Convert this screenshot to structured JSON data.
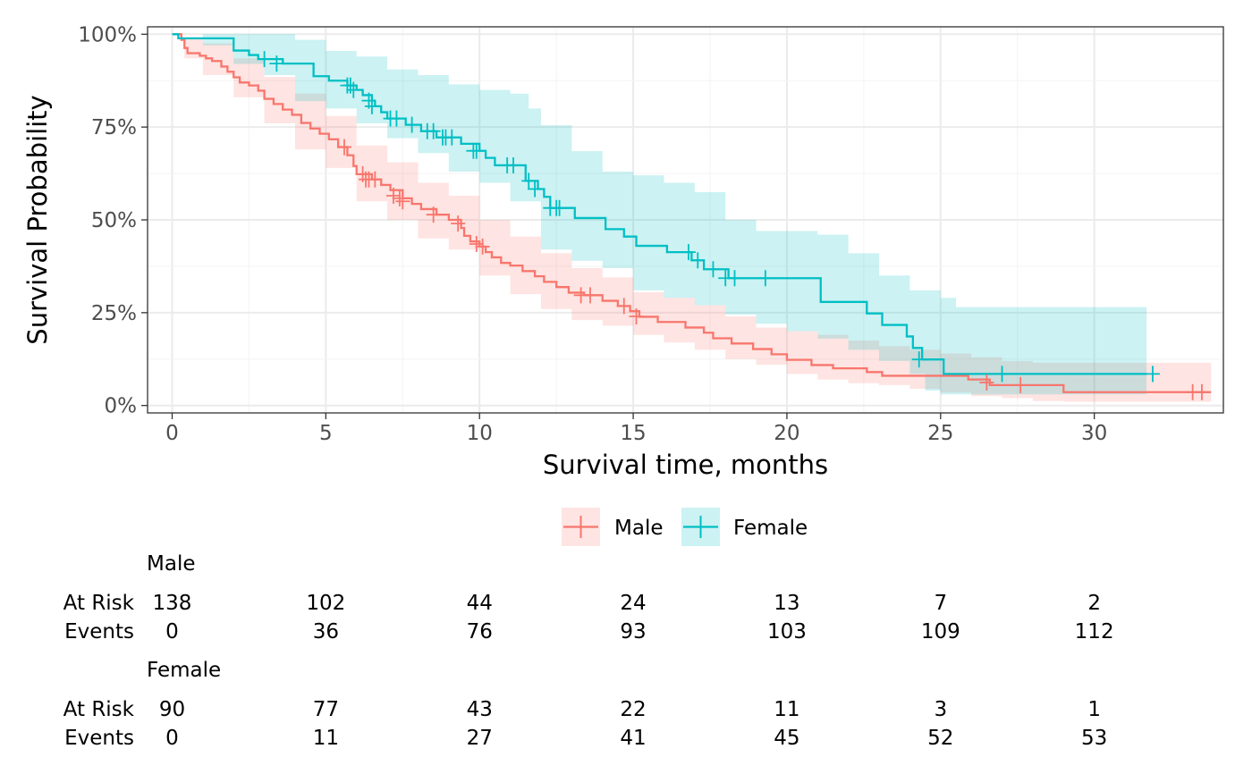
{
  "chart_data": {
    "type": "line",
    "subtype": "kaplan-meier",
    "xlabel": "Survival time, months",
    "ylabel": "Survival Probability",
    "xlim": [
      -0.8,
      34.2
    ],
    "ylim": [
      -0.02,
      1.02
    ],
    "x_ticks": [
      0,
      5,
      10,
      15,
      20,
      25,
      30
    ],
    "x_tick_labels": [
      "0",
      "5",
      "10",
      "15",
      "20",
      "25",
      "30"
    ],
    "y_ticks": [
      0,
      0.25,
      0.5,
      0.75,
      1.0
    ],
    "y_tick_labels": [
      "0%",
      "25%",
      "50%",
      "75%",
      "100%"
    ],
    "grid": true,
    "legend_position": "bottom",
    "series": [
      {
        "name": "Male",
        "color": "#F8766D",
        "fill": "#FBC4C0",
        "steps": [
          [
            0,
            1.0
          ],
          [
            0.3,
            0.985
          ],
          [
            0.4,
            0.963
          ],
          [
            0.5,
            0.949
          ],
          [
            0.9,
            0.942
          ],
          [
            1.1,
            0.935
          ],
          [
            1.3,
            0.928
          ],
          [
            1.6,
            0.913
          ],
          [
            1.8,
            0.899
          ],
          [
            2.0,
            0.884
          ],
          [
            2.2,
            0.87
          ],
          [
            2.5,
            0.862
          ],
          [
            2.8,
            0.848
          ],
          [
            3.0,
            0.826
          ],
          [
            3.3,
            0.812
          ],
          [
            3.6,
            0.797
          ],
          [
            3.9,
            0.783
          ],
          [
            4.2,
            0.761
          ],
          [
            4.5,
            0.746
          ],
          [
            4.8,
            0.732
          ],
          [
            5.1,
            0.717
          ],
          [
            5.4,
            0.696
          ],
          [
            5.7,
            0.674
          ],
          [
            5.9,
            0.645
          ],
          [
            6.0,
            0.623
          ],
          [
            6.5,
            0.609
          ],
          [
            6.8,
            0.594
          ],
          [
            7.1,
            0.58
          ],
          [
            7.5,
            0.558
          ],
          [
            7.8,
            0.543
          ],
          [
            8.1,
            0.529
          ],
          [
            8.6,
            0.514
          ],
          [
            9.0,
            0.5
          ],
          [
            9.4,
            0.478
          ],
          [
            9.5,
            0.457
          ],
          [
            9.7,
            0.442
          ],
          [
            10.0,
            0.428
          ],
          [
            10.2,
            0.413
          ],
          [
            10.4,
            0.399
          ],
          [
            10.7,
            0.384
          ],
          [
            11.0,
            0.377
          ],
          [
            11.4,
            0.362
          ],
          [
            11.8,
            0.348
          ],
          [
            12.1,
            0.333
          ],
          [
            12.5,
            0.319
          ],
          [
            12.9,
            0.304
          ],
          [
            13.4,
            0.297
          ],
          [
            14.0,
            0.282
          ],
          [
            14.5,
            0.268
          ],
          [
            14.9,
            0.254
          ],
          [
            15.2,
            0.239
          ],
          [
            15.8,
            0.225
          ],
          [
            16.7,
            0.21
          ],
          [
            17.3,
            0.196
          ],
          [
            17.6,
            0.181
          ],
          [
            18.2,
            0.167
          ],
          [
            18.9,
            0.152
          ],
          [
            19.5,
            0.138
          ],
          [
            20.0,
            0.123
          ],
          [
            20.8,
            0.109
          ],
          [
            21.5,
            0.1
          ],
          [
            22.6,
            0.09
          ],
          [
            23.1,
            0.08
          ],
          [
            25.9,
            0.07
          ],
          [
            26.6,
            0.055
          ],
          [
            29.0,
            0.036
          ],
          [
            33.8,
            0.036
          ]
        ],
        "upper": [
          [
            0,
            1.0
          ],
          [
            0.4,
            0.99
          ],
          [
            1.0,
            0.975
          ],
          [
            2.0,
            0.935
          ],
          [
            3.0,
            0.885
          ],
          [
            4.0,
            0.84
          ],
          [
            5.0,
            0.78
          ],
          [
            6.0,
            0.7
          ],
          [
            7.0,
            0.655
          ],
          [
            8.0,
            0.6
          ],
          [
            9.0,
            0.565
          ],
          [
            10.0,
            0.5
          ],
          [
            11.0,
            0.455
          ],
          [
            12.0,
            0.41
          ],
          [
            13.0,
            0.37
          ],
          [
            14.0,
            0.345
          ],
          [
            15.0,
            0.305
          ],
          [
            16.0,
            0.29
          ],
          [
            17.0,
            0.27
          ],
          [
            18.0,
            0.24
          ],
          [
            19.0,
            0.21
          ],
          [
            20.0,
            0.2
          ],
          [
            21.0,
            0.19
          ],
          [
            22.0,
            0.175
          ],
          [
            23.0,
            0.16
          ],
          [
            24.0,
            0.15
          ],
          [
            25.0,
            0.14
          ],
          [
            26.0,
            0.13
          ],
          [
            27.0,
            0.12
          ],
          [
            28.0,
            0.115
          ],
          [
            29.0,
            0.115
          ],
          [
            33.8,
            0.115
          ]
        ],
        "lower": [
          [
            0,
            1.0
          ],
          [
            0.4,
            0.935
          ],
          [
            1.0,
            0.89
          ],
          [
            2.0,
            0.83
          ],
          [
            3.0,
            0.76
          ],
          [
            4.0,
            0.69
          ],
          [
            5.0,
            0.64
          ],
          [
            6.0,
            0.55
          ],
          [
            7.0,
            0.5
          ],
          [
            8.0,
            0.45
          ],
          [
            9.0,
            0.42
          ],
          [
            10.0,
            0.35
          ],
          [
            11.0,
            0.3
          ],
          [
            12.0,
            0.26
          ],
          [
            13.0,
            0.23
          ],
          [
            14.0,
            0.215
          ],
          [
            15.0,
            0.19
          ],
          [
            16.0,
            0.17
          ],
          [
            17.0,
            0.15
          ],
          [
            18.0,
            0.125
          ],
          [
            19.0,
            0.11
          ],
          [
            20.0,
            0.085
          ],
          [
            21.0,
            0.07
          ],
          [
            22.0,
            0.06
          ],
          [
            23.0,
            0.055
          ],
          [
            24.0,
            0.045
          ],
          [
            25.0,
            0.035
          ],
          [
            26.0,
            0.025
          ],
          [
            27.0,
            0.02
          ],
          [
            28.0,
            0.012
          ],
          [
            29.0,
            0.01
          ],
          [
            33.8,
            0.01
          ]
        ],
        "censored": [
          [
            5.6,
            0.696
          ],
          [
            6.2,
            0.623
          ],
          [
            6.3,
            0.609
          ],
          [
            6.4,
            0.609
          ],
          [
            6.6,
            0.609
          ],
          [
            7.2,
            0.565
          ],
          [
            7.4,
            0.558
          ],
          [
            7.5,
            0.55
          ],
          [
            8.5,
            0.514
          ],
          [
            9.3,
            0.49
          ],
          [
            9.9,
            0.435
          ],
          [
            10.1,
            0.428
          ],
          [
            13.3,
            0.297
          ],
          [
            13.6,
            0.297
          ],
          [
            14.7,
            0.268
          ],
          [
            15.1,
            0.24
          ],
          [
            26.5,
            0.062
          ],
          [
            27.6,
            0.055
          ],
          [
            33.2,
            0.036
          ],
          [
            33.5,
            0.036
          ]
        ]
      },
      {
        "name": "Female",
        "color": "#00BFC4",
        "fill": "#B3E9EB",
        "steps": [
          [
            0,
            1.0
          ],
          [
            0.2,
            0.989
          ],
          [
            2.0,
            0.956
          ],
          [
            2.5,
            0.944
          ],
          [
            2.8,
            0.933
          ],
          [
            3.6,
            0.921
          ],
          [
            4.6,
            0.887
          ],
          [
            5.1,
            0.875
          ],
          [
            5.7,
            0.862
          ],
          [
            6.0,
            0.85
          ],
          [
            6.2,
            0.836
          ],
          [
            6.5,
            0.821
          ],
          [
            6.6,
            0.806
          ],
          [
            6.8,
            0.79
          ],
          [
            7.0,
            0.773
          ],
          [
            7.6,
            0.756
          ],
          [
            8.1,
            0.739
          ],
          [
            8.6,
            0.722
          ],
          [
            9.4,
            0.705
          ],
          [
            10.0,
            0.686
          ],
          [
            10.2,
            0.667
          ],
          [
            10.5,
            0.647
          ],
          [
            11.5,
            0.605
          ],
          [
            11.9,
            0.583
          ],
          [
            12.1,
            0.562
          ],
          [
            12.3,
            0.532
          ],
          [
            13.1,
            0.505
          ],
          [
            14.1,
            0.475
          ],
          [
            14.7,
            0.455
          ],
          [
            15.1,
            0.43
          ],
          [
            16.1,
            0.413
          ],
          [
            16.9,
            0.391
          ],
          [
            17.3,
            0.367
          ],
          [
            18.1,
            0.343
          ],
          [
            21.1,
            0.279
          ],
          [
            22.6,
            0.248
          ],
          [
            23.1,
            0.217
          ],
          [
            23.9,
            0.186
          ],
          [
            24.1,
            0.155
          ],
          [
            24.4,
            0.124
          ],
          [
            25.1,
            0.085
          ],
          [
            31.7,
            0.085
          ]
        ],
        "upper": [
          [
            0,
            1.0
          ],
          [
            1.0,
            1.0
          ],
          [
            2.0,
            1.0
          ],
          [
            3.0,
            1.0
          ],
          [
            4.0,
            0.985
          ],
          [
            5.0,
            0.955
          ],
          [
            6.0,
            0.94
          ],
          [
            7.0,
            0.905
          ],
          [
            8.0,
            0.89
          ],
          [
            9.0,
            0.865
          ],
          [
            10.0,
            0.85
          ],
          [
            11.0,
            0.84
          ],
          [
            11.6,
            0.8
          ],
          [
            12.0,
            0.755
          ],
          [
            13.0,
            0.685
          ],
          [
            14.0,
            0.63
          ],
          [
            15.0,
            0.62
          ],
          [
            16.0,
            0.6
          ],
          [
            17.0,
            0.575
          ],
          [
            18.0,
            0.5
          ],
          [
            19.0,
            0.47
          ],
          [
            20.0,
            0.47
          ],
          [
            21.0,
            0.46
          ],
          [
            22.0,
            0.41
          ],
          [
            23.0,
            0.35
          ],
          [
            24.0,
            0.31
          ],
          [
            25.0,
            0.29
          ],
          [
            25.5,
            0.265
          ],
          [
            31.7,
            0.265
          ]
        ],
        "lower": [
          [
            0,
            1.0
          ],
          [
            1.0,
            0.97
          ],
          [
            2.0,
            0.92
          ],
          [
            3.0,
            0.89
          ],
          [
            4.0,
            0.82
          ],
          [
            5.0,
            0.8
          ],
          [
            6.0,
            0.76
          ],
          [
            7.0,
            0.72
          ],
          [
            8.0,
            0.68
          ],
          [
            9.0,
            0.63
          ],
          [
            10.0,
            0.6
          ],
          [
            11.0,
            0.55
          ],
          [
            12.0,
            0.42
          ],
          [
            13.0,
            0.39
          ],
          [
            14.0,
            0.37
          ],
          [
            15.0,
            0.31
          ],
          [
            16.0,
            0.29
          ],
          [
            17.0,
            0.27
          ],
          [
            18.0,
            0.245
          ],
          [
            19.0,
            0.22
          ],
          [
            20.0,
            0.2
          ],
          [
            21.0,
            0.18
          ],
          [
            22.0,
            0.15
          ],
          [
            23.0,
            0.12
          ],
          [
            24.0,
            0.085
          ],
          [
            24.5,
            0.04
          ],
          [
            25.0,
            0.03
          ],
          [
            31.7,
            0.03
          ]
        ],
        "censored": [
          [
            3.0,
            0.933
          ],
          [
            3.4,
            0.921
          ],
          [
            5.7,
            0.862
          ],
          [
            5.8,
            0.862
          ],
          [
            5.9,
            0.85
          ],
          [
            6.4,
            0.821
          ],
          [
            6.5,
            0.806
          ],
          [
            7.1,
            0.773
          ],
          [
            7.3,
            0.773
          ],
          [
            7.8,
            0.756
          ],
          [
            8.3,
            0.739
          ],
          [
            8.5,
            0.739
          ],
          [
            8.8,
            0.722
          ],
          [
            8.9,
            0.722
          ],
          [
            9.1,
            0.722
          ],
          [
            9.8,
            0.686
          ],
          [
            9.9,
            0.686
          ],
          [
            10.9,
            0.647
          ],
          [
            11.1,
            0.647
          ],
          [
            11.6,
            0.605
          ],
          [
            11.8,
            0.583
          ],
          [
            12.3,
            0.532
          ],
          [
            12.5,
            0.532
          ],
          [
            12.6,
            0.532
          ],
          [
            16.8,
            0.413
          ],
          [
            17.1,
            0.391
          ],
          [
            17.6,
            0.367
          ],
          [
            18.0,
            0.343
          ],
          [
            18.3,
            0.343
          ],
          [
            19.3,
            0.343
          ],
          [
            24.3,
            0.124
          ],
          [
            27.0,
            0.085
          ],
          [
            31.9,
            0.085
          ]
        ]
      }
    ],
    "risk_table": {
      "times": [
        0,
        5,
        10,
        15,
        20,
        25,
        30
      ],
      "row_labels": [
        "At Risk",
        "Events"
      ],
      "groups": [
        {
          "name": "Male",
          "at_risk": [
            "138",
            "102",
            "44",
            "24",
            "13",
            "7",
            "2"
          ],
          "events": [
            "0",
            "36",
            "76",
            "93",
            "103",
            "109",
            "112"
          ]
        },
        {
          "name": "Female",
          "at_risk": [
            "90",
            "77",
            "43",
            "22",
            "11",
            "3",
            "1"
          ],
          "events": [
            "0",
            "11",
            "27",
            "41",
            "45",
            "52",
            "53"
          ]
        }
      ]
    }
  }
}
